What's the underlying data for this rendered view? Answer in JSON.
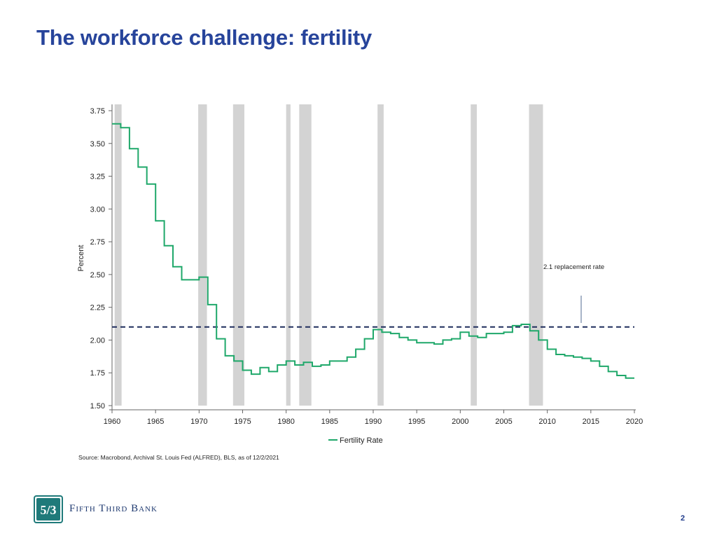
{
  "page": {
    "title": "The workforce challenge: fertility",
    "source": "Source: Macrobond, Archival St. Louis Fed (ALFRED), BLS, as of 12/2/2021",
    "brand_name": "Fifth Third Bank",
    "page_number": "2"
  },
  "colors": {
    "title": "#27449b",
    "series": "#1fa86a",
    "replacement_line": "#1f2d5c",
    "recession_band": "#d3d3d3",
    "logo": "#1f7a7a"
  },
  "icons": {
    "logo": "fifth-third-logo-icon"
  },
  "chart_data": {
    "type": "line",
    "step": true,
    "ylabel": "Percent",
    "xlim": [
      1960,
      2020
    ],
    "ylim": [
      1.5,
      3.75
    ],
    "x_ticks": [
      1960,
      1965,
      1970,
      1975,
      1980,
      1985,
      1990,
      1995,
      2000,
      2005,
      2010,
      2015,
      2020
    ],
    "y_ticks": [
      1.5,
      1.75,
      2.0,
      2.25,
      2.5,
      2.75,
      3.0,
      3.25,
      3.5,
      3.75
    ],
    "legend": {
      "position": "bottom-center",
      "entries": [
        "Fertility Rate"
      ]
    },
    "series": [
      {
        "name": "Fertility Rate",
        "x": [
          1960,
          1961,
          1962,
          1963,
          1964,
          1965,
          1966,
          1967,
          1968,
          1969,
          1970,
          1971,
          1972,
          1973,
          1974,
          1975,
          1976,
          1977,
          1978,
          1979,
          1980,
          1981,
          1982,
          1983,
          1984,
          1985,
          1986,
          1987,
          1988,
          1989,
          1990,
          1991,
          1992,
          1993,
          1994,
          1995,
          1996,
          1997,
          1998,
          1999,
          2000,
          2001,
          2002,
          2003,
          2004,
          2005,
          2006,
          2007,
          2008,
          2009,
          2010,
          2011,
          2012,
          2013,
          2014,
          2015,
          2016,
          2017,
          2018,
          2019
        ],
        "y": [
          3.65,
          3.62,
          3.46,
          3.32,
          3.19,
          2.91,
          2.72,
          2.56,
          2.46,
          2.46,
          2.48,
          2.27,
          2.01,
          1.88,
          1.84,
          1.77,
          1.74,
          1.79,
          1.76,
          1.81,
          1.84,
          1.81,
          1.83,
          1.8,
          1.81,
          1.84,
          1.84,
          1.87,
          1.93,
          2.01,
          2.08,
          2.06,
          2.05,
          2.02,
          2.0,
          1.98,
          1.98,
          1.97,
          2.0,
          2.01,
          2.06,
          2.03,
          2.02,
          2.05,
          2.05,
          2.06,
          2.11,
          2.12,
          2.07,
          2.0,
          1.93,
          1.89,
          1.88,
          1.87,
          1.86,
          1.84,
          1.8,
          1.76,
          1.73,
          1.71
        ]
      }
    ],
    "recessions": [
      [
        1960.3,
        1961.1
      ],
      [
        1969.9,
        1970.9
      ],
      [
        1973.9,
        1975.2
      ],
      [
        1980.0,
        1980.5
      ],
      [
        1981.5,
        1982.9
      ],
      [
        1990.5,
        1991.2
      ],
      [
        2001.2,
        2001.9
      ],
      [
        2007.9,
        2009.5
      ]
    ],
    "reference_line": {
      "y": 2.1,
      "style": "dashed",
      "label": "2.1 replacement rate"
    }
  }
}
